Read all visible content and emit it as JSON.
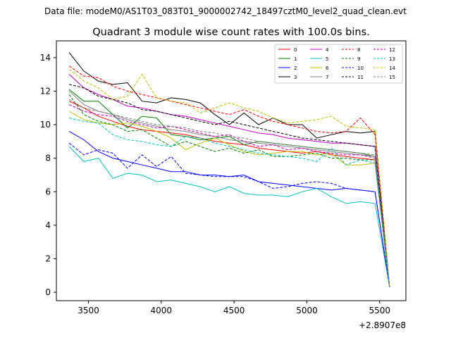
{
  "figure": {
    "suptitle": "Data file: modeM0/AS1T03_083T01_9000002742_18497cztM0_level2_quad_clean.evt"
  },
  "chart_data": {
    "type": "line",
    "title": "Quadrant 3 module wise count rates with 100.0s bins.",
    "xlabel": "",
    "ylabel": "",
    "x_offset_label": "+2.8907e8",
    "xlim": [
      3280,
      5680
    ],
    "ylim": [
      -0.5,
      15.0
    ],
    "xticks": [
      3500,
      4000,
      4500,
      5000,
      5500
    ],
    "yticks": [
      0,
      2,
      4,
      6,
      8,
      10,
      12,
      14
    ],
    "x": [
      3368,
      3468,
      3568,
      3668,
      3768,
      3868,
      3968,
      4068,
      4168,
      4268,
      4368,
      4468,
      4568,
      4668,
      4768,
      4868,
      4968,
      5068,
      5168,
      5268,
      5368,
      5468,
      5568
    ],
    "legend_location": "upper right",
    "series": [
      {
        "name": "0",
        "color": "#ff0000",
        "dash": "solid",
        "values": [
          11.4,
          11.0,
          10.5,
          10.2,
          9.9,
          9.7,
          9.6,
          9.5,
          9.4,
          9.2,
          9.0,
          8.9,
          8.8,
          8.6,
          8.5,
          8.4,
          8.3,
          8.4,
          8.2,
          8.1,
          8.0,
          7.9,
          0.3
        ]
      },
      {
        "name": "1",
        "color": "#008000",
        "dash": "solid",
        "values": [
          12.1,
          11.4,
          11.4,
          10.6,
          9.8,
          10.5,
          10.4,
          9.4,
          9.3,
          9.1,
          9.2,
          9.3,
          8.8,
          9.0,
          8.9,
          8.8,
          8.7,
          8.6,
          8.5,
          8.4,
          8.3,
          8.1,
          0.3
        ]
      },
      {
        "name": "2",
        "color": "#0000ff",
        "dash": "solid",
        "values": [
          9.6,
          9.1,
          8.4,
          8.0,
          7.8,
          7.6,
          7.4,
          7.2,
          7.2,
          7.0,
          7.0,
          6.9,
          7.0,
          6.6,
          6.5,
          6.4,
          6.3,
          6.2,
          6.1,
          6.2,
          6.1,
          6.0,
          0.3
        ]
      },
      {
        "name": "3",
        "color": "#000000",
        "dash": "solid",
        "values": [
          14.3,
          13.2,
          12.6,
          12.4,
          12.5,
          11.4,
          11.3,
          11.6,
          11.5,
          11.3,
          10.6,
          10.0,
          10.7,
          10.0,
          10.4,
          10.0,
          10.0,
          9.2,
          9.4,
          9.6,
          9.5,
          9.6,
          0.3
        ]
      },
      {
        "name": "4",
        "color": "#bf00bf",
        "dash": "solid",
        "values": [
          13.0,
          12.2,
          11.8,
          11.5,
          11.1,
          11.0,
          10.8,
          10.6,
          10.5,
          10.3,
          10.1,
          9.9,
          9.7,
          9.5,
          9.4,
          9.2,
          9.1,
          9.0,
          8.9,
          8.9,
          8.8,
          8.7,
          0.3
        ]
      },
      {
        "name": "5",
        "color": "#00bfbf",
        "dash": "solid",
        "values": [
          8.7,
          7.8,
          8.0,
          6.8,
          7.1,
          7.0,
          6.6,
          6.7,
          6.5,
          6.3,
          6.0,
          6.3,
          5.9,
          5.8,
          5.8,
          5.7,
          6.0,
          6.2,
          5.7,
          5.3,
          5.4,
          5.3,
          0.3
        ]
      },
      {
        "name": "6",
        "color": "#bfbf00",
        "dash": "solid",
        "values": [
          10.8,
          10.3,
          10.1,
          10.0,
          10.1,
          9.9,
          9.6,
          9.2,
          8.5,
          8.9,
          9.2,
          8.8,
          8.4,
          8.2,
          8.3,
          8.4,
          8.4,
          8.2,
          8.3,
          7.6,
          7.6,
          7.7,
          0.3
        ]
      },
      {
        "name": "7",
        "color": "#808080",
        "dash": "solid",
        "values": [
          12.0,
          11.2,
          10.8,
          10.6,
          10.3,
          10.1,
          9.9,
          9.7,
          9.6,
          9.4,
          9.3,
          9.1,
          9.0,
          8.9,
          8.8,
          8.7,
          8.6,
          8.5,
          8.4,
          8.3,
          8.2,
          8.1,
          0.3
        ]
      },
      {
        "name": "8",
        "color": "#ff0000",
        "dash": "dashed",
        "values": [
          13.5,
          12.9,
          12.8,
          12.3,
          12.0,
          11.8,
          11.6,
          11.4,
          11.2,
          11.0,
          10.8,
          10.6,
          10.9,
          10.5,
          10.2,
          10.0,
          9.8,
          9.6,
          9.5,
          9.6,
          10.4,
          9.4,
          0.3
        ]
      },
      {
        "name": "9",
        "color": "#008000",
        "dash": "dashed",
        "values": [
          11.8,
          10.6,
          10.2,
          10.0,
          9.6,
          9.7,
          9.2,
          8.7,
          9.0,
          8.7,
          8.4,
          8.6,
          8.3,
          8.5,
          8.1,
          8.1,
          8.2,
          8.3,
          8.0,
          8.0,
          7.9,
          7.9,
          0.3
        ]
      },
      {
        "name": "10",
        "color": "#0000ff",
        "dash": "dashed",
        "values": [
          8.9,
          8.2,
          8.5,
          8.3,
          7.4,
          8.2,
          7.5,
          8.1,
          7.1,
          7.0,
          6.9,
          6.9,
          6.9,
          6.6,
          6.2,
          6.3,
          6.5,
          6.6,
          6.5,
          6.2,
          6.1,
          6.0,
          0.3
        ]
      },
      {
        "name": "11",
        "color": "#000000",
        "dash": "dashed",
        "values": [
          12.4,
          12.2,
          11.7,
          11.5,
          11.3,
          10.9,
          10.8,
          10.6,
          10.4,
          10.2,
          10.0,
          10.2,
          10.0,
          9.8,
          9.6,
          9.4,
          9.2,
          9.1,
          9.0,
          8.9,
          8.8,
          8.7,
          0.3
        ]
      },
      {
        "name": "12",
        "color": "#bf00bf",
        "dash": "dashed",
        "values": [
          11.2,
          10.8,
          10.6,
          10.5,
          10.2,
          10.0,
          9.8,
          9.9,
          9.7,
          9.5,
          9.3,
          9.4,
          9.0,
          8.7,
          8.8,
          8.5,
          8.6,
          8.4,
          8.3,
          8.2,
          8.2,
          8.0,
          0.3
        ]
      },
      {
        "name": "13",
        "color": "#00bfbf",
        "dash": "dashed",
        "values": [
          10.4,
          10.2,
          10.1,
          9.4,
          9.1,
          9.0,
          8.8,
          8.7,
          9.3,
          9.2,
          8.9,
          8.7,
          8.5,
          8.3,
          8.2,
          8.1,
          8.0,
          7.8,
          8.6,
          7.6,
          7.9,
          7.7,
          0.3
        ]
      },
      {
        "name": "14",
        "color": "#bfbf00",
        "dash": "dashed",
        "values": [
          13.3,
          12.6,
          12.2,
          11.5,
          11.7,
          13.0,
          11.6,
          11.4,
          11.3,
          10.7,
          11.0,
          11.3,
          11.0,
          10.8,
          10.4,
          10.1,
          10.2,
          10.3,
          10.5,
          9.9,
          9.8,
          9.7,
          0.3
        ]
      },
      {
        "name": "15",
        "color": "#808080",
        "dash": "dashed",
        "values": [
          11.5,
          11.0,
          10.8,
          10.6,
          10.4,
          10.2,
          10.0,
          9.9,
          9.8,
          9.6,
          9.5,
          9.3,
          9.2,
          9.0,
          8.9,
          8.8,
          8.7,
          8.6,
          8.5,
          8.4,
          8.3,
          8.2,
          0.3
        ]
      }
    ]
  }
}
